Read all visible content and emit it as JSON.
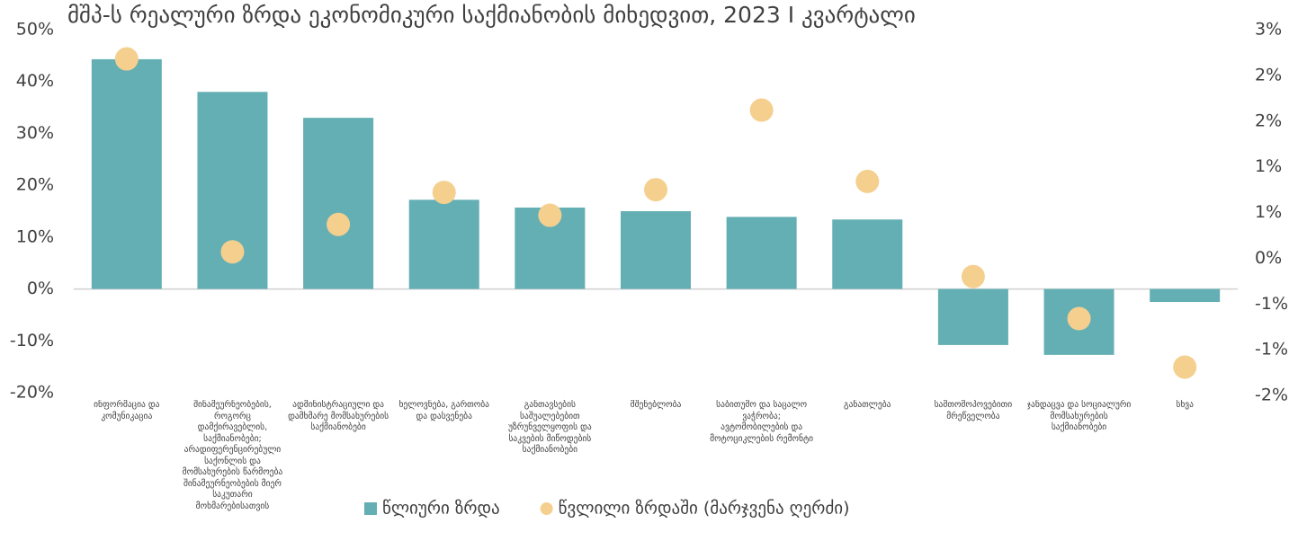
{
  "chart_data": {
    "type": "bar",
    "title": "მშპ-ს რეალური ზრდა ეკონომიკური საქმიანობის მიხედვით, 2023 I კვარტალი",
    "categories": [
      "ინფორმაცია და კომუნიკაცია",
      "შინამეურნეობების, როგორც დამქირავებლის, საქმიანობები; არადიფერენცირებული საქონლის და მომსახურების წარმოება შინამეურნეობების მიერ საკუთარი მოხმარებისათვის",
      "ადმინისტრაციული და დამხმარე მომსახურების საქმიანობები",
      "ხელოვნება, გართობა და დასვენება",
      "განთავსების საშუალებებით უზრუნველყოფის და საკვების მიწოდების საქმიანობები",
      "მშენებლობა",
      "საბითუმო და საცალო ვაჭრობა; ავტომობილების და მოტოციკლების რემონტი",
      "განათლება",
      "სამთომოპოვებითი მრეწველობა",
      "ჯანდაცვა და სოციალური მომსახურების საქმიანობები",
      "სხვა"
    ],
    "series": [
      {
        "name": "წლიური ზრდა",
        "type": "bar",
        "color": "#64afb4",
        "values": [
          44.3,
          38.0,
          33.0,
          17.2,
          15.7,
          15.0,
          13.9,
          13.4,
          -10.8,
          -12.7,
          -2.5
        ]
      },
      {
        "name": "წვლილი ზრდაში (მარჯვენა ღერძი)",
        "type": "scatter",
        "axis": "y2",
        "color": "#f5cf8e",
        "values": [
          2.18,
          0.07,
          0.37,
          0.72,
          0.47,
          0.75,
          1.62,
          0.84,
          -0.2,
          -0.66,
          -1.19
        ]
      }
    ],
    "ylim": [
      -20,
      50
    ],
    "yticks": [
      {
        "value": 50,
        "label": "50%"
      },
      {
        "value": 40,
        "label": "40%"
      },
      {
        "value": 30,
        "label": "30%"
      },
      {
        "value": 20,
        "label": "20%"
      },
      {
        "value": 10,
        "label": "10%"
      },
      {
        "value": 0,
        "label": "0%"
      },
      {
        "value": -10,
        "label": "-10%"
      },
      {
        "value": -20,
        "label": "-20%"
      }
    ],
    "y2lim": [
      -1.5,
      2.5
    ],
    "y2ticks": [
      {
        "value": 2.5,
        "label": "3%"
      },
      {
        "value": 2,
        "label": "2%"
      },
      {
        "value": 1.5,
        "label": "2%"
      },
      {
        "value": 1,
        "label": "1%"
      },
      {
        "value": 0.5,
        "label": "1%"
      },
      {
        "value": 0,
        "label": "0%"
      },
      {
        "value": -0.5,
        "label": "-1%"
      },
      {
        "value": -1,
        "label": "-1%"
      },
      {
        "value": -1.5,
        "label": "-2%"
      }
    ],
    "grid": false,
    "legend": "bottom"
  }
}
